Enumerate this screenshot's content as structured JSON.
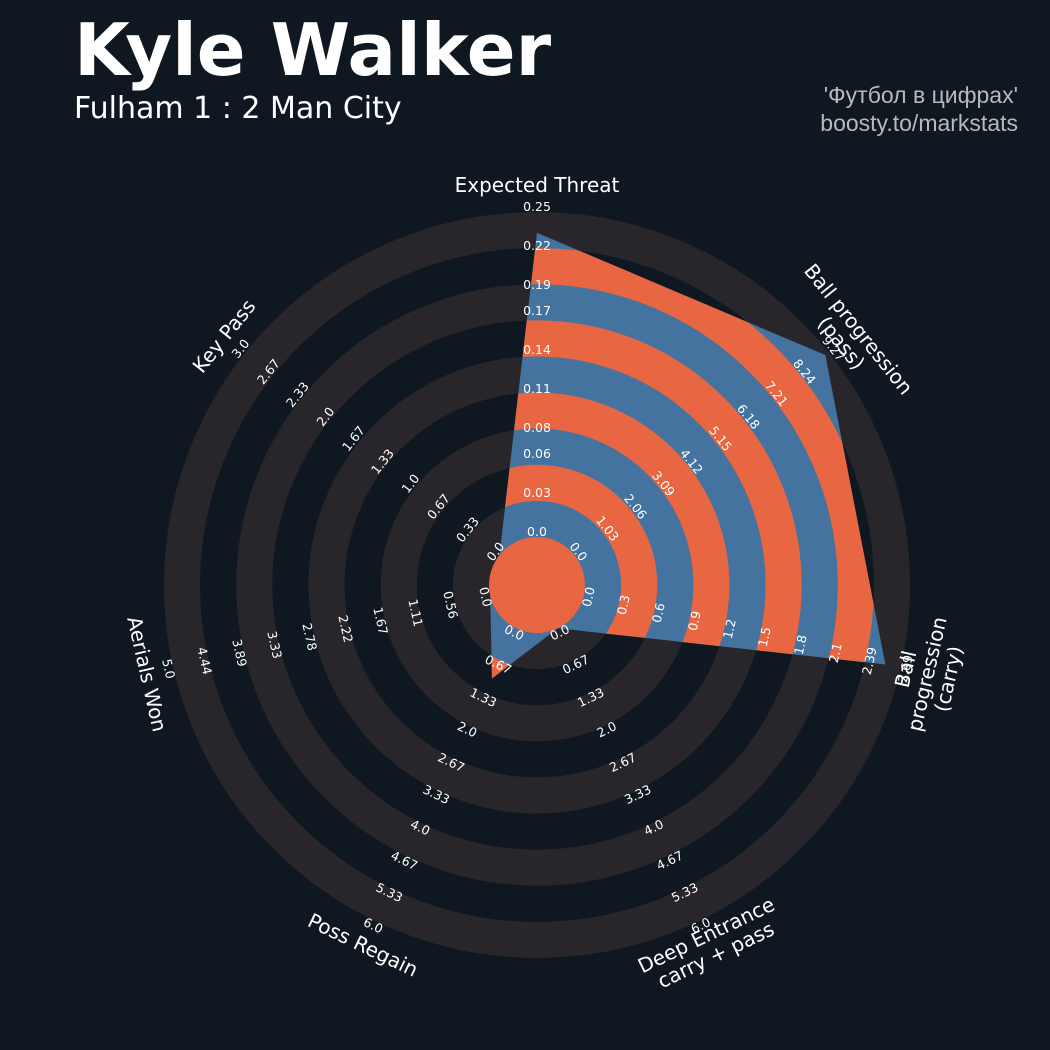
{
  "chart_data": {
    "type": "radar",
    "title": "Kyle Walker",
    "subtitle": "Fulham 1 : 2 Man City",
    "credits": [
      "'Футбол в цифрах'",
      "boosty.to/markstats"
    ],
    "ring_color": "#e86742",
    "background_ring_color": "#28252b",
    "axes": [
      {
        "name": "Expected Threat",
        "lim": [
          0,
          0.25
        ],
        "ticks": [
          {
            "value": 0,
            "label": "0.0"
          },
          0.03,
          0.06,
          0.08,
          0.11,
          0.14,
          0.17,
          0.19,
          0.22,
          0.25
        ]
      },
      {
        "name": "Ball progression (pass)",
        "lim": [
          0,
          9.27
        ],
        "ticks": [
          {
            "value": 0,
            "label": "0.0"
          },
          1.03,
          2.06,
          3.09,
          4.12,
          5.15,
          6.18,
          7.21,
          8.24,
          9.27
        ]
      },
      {
        "name": "Ball progression (carry)",
        "lim": [
          0,
          2.69
        ],
        "ticks": [
          {
            "value": 0,
            "label": "0.0"
          },
          0.3,
          0.6,
          0.9,
          1.2,
          1.5,
          1.8,
          2.1,
          2.39,
          2.69
        ]
      },
      {
        "name": "Deep Entrance\ncarry + pass",
        "lim": [
          0,
          6
        ],
        "ticks": [
          {
            "value": 0,
            "label": "0.0"
          },
          0.67,
          1.33,
          {
            "value": 2,
            "label": "2.0"
          },
          2.67,
          3.33,
          {
            "value": 4,
            "label": "4.0"
          },
          4.67,
          5.33,
          {
            "value": 6,
            "label": "6.0"
          }
        ]
      },
      {
        "name": "Poss Regain",
        "lim": [
          0,
          6
        ],
        "ticks": [
          {
            "value": 0,
            "label": "0.0"
          },
          0.67,
          1.33,
          {
            "value": 2,
            "label": "2.0"
          },
          2.67,
          3.33,
          {
            "value": 4,
            "label": "4.0"
          },
          4.67,
          5.33,
          {
            "value": 6,
            "label": "6.0"
          }
        ]
      },
      {
        "name": "Aerials Won",
        "lim": [
          0,
          5
        ],
        "ticks": [
          {
            "value": 0,
            "label": "0.0"
          },
          0.56,
          1.11,
          1.67,
          2.22,
          2.78,
          3.33,
          3.89,
          4.44,
          {
            "value": 5,
            "label": "5.0"
          }
        ]
      },
      {
        "name": "Key Pass",
        "lim": [
          0,
          3
        ],
        "ticks": [
          {
            "value": 0,
            "label": "0.0"
          },
          0.33,
          0.67,
          {
            "value": 1,
            "label": "1.0"
          },
          1.33,
          1.67,
          {
            "value": 2,
            "label": "2.0"
          },
          2.33,
          2.67,
          {
            "value": 3,
            "label": "3.0"
          }
        ]
      }
    ],
    "series": [
      {
        "name": "Kyle Walker",
        "color": "#43739e",
        "values": [
          0.234,
          9.15,
          2.56,
          0,
          1.03,
          0,
          0
        ]
      }
    ]
  }
}
